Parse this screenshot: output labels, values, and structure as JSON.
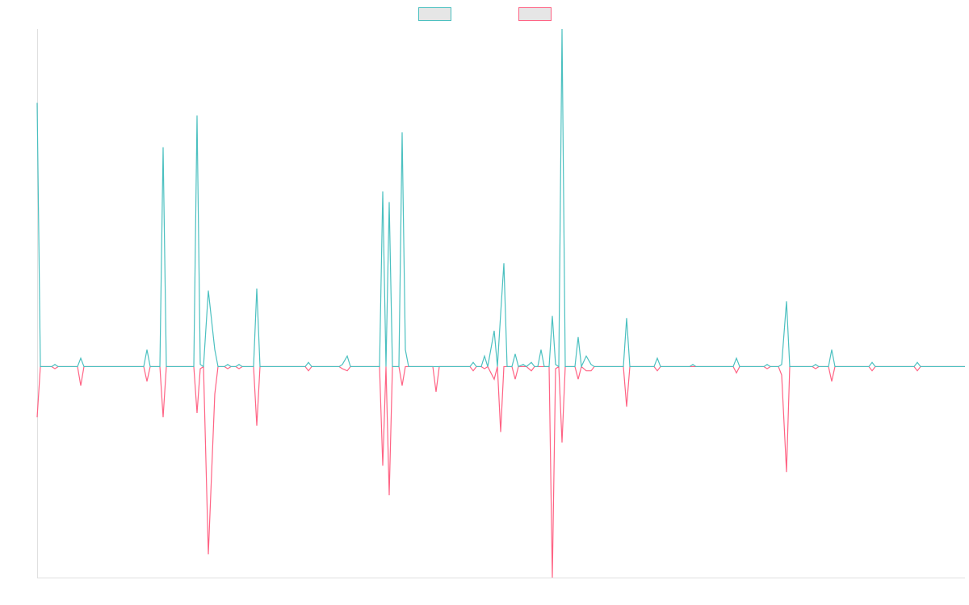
{
  "chart_data": {
    "type": "line",
    "x": [
      0,
      4,
      18,
      22,
      26,
      50,
      54,
      58,
      132,
      136,
      140,
      152,
      156,
      160,
      194,
      198,
      202,
      206,
      212,
      220,
      224,
      232,
      236,
      240,
      246,
      250,
      254,
      268,
      272,
      276,
      332,
      336,
      340,
      374,
      378,
      384,
      388,
      424,
      428,
      432,
      436,
      440,
      448,
      452,
      456,
      460,
      490,
      494,
      498,
      536,
      540,
      544,
      550,
      554,
      558,
      566,
      570,
      574,
      578,
      582,
      588,
      592,
      596,
      602,
      606,
      612,
      616,
      620,
      624,
      628,
      634,
      638,
      642,
      646,
      650,
      654,
      666,
      670,
      674,
      680,
      686,
      690,
      726,
      730,
      734,
      764,
      768,
      772,
      808,
      812,
      816,
      862,
      866,
      870,
      900,
      904,
      908,
      918,
      922,
      928,
      932,
      960,
      964,
      968,
      980,
      984,
      988,
      1030,
      1034,
      1038,
      1086,
      1090,
      1094,
      1149
    ],
    "series": [
      {
        "color": "#4bc0c0",
        "values": [
          1.25,
          0,
          0,
          0.01,
          0,
          0,
          0.04,
          0,
          0,
          0.08,
          0,
          0,
          1.04,
          0,
          0,
          1.19,
          0.01,
          0,
          0.36,
          0.08,
          0,
          0,
          0.01,
          0,
          0,
          0.01,
          0,
          0,
          0.37,
          0,
          0,
          0.02,
          0,
          0,
          0.01,
          0.05,
          0,
          0,
          0.83,
          0,
          0.78,
          0,
          0,
          1.11,
          0.08,
          0,
          0,
          0,
          0,
          0,
          0.02,
          0,
          0,
          0.05,
          0,
          0.17,
          0,
          0.25,
          0.49,
          0,
          0,
          0.06,
          0,
          0.01,
          0,
          0.02,
          0,
          0,
          0.08,
          0,
          0,
          0.24,
          0.01,
          0,
          1.6,
          0,
          0,
          0.14,
          0,
          0.05,
          0.01,
          0,
          0,
          0.23,
          0,
          0,
          0.04,
          0,
          0,
          0.01,
          0,
          0,
          0.04,
          0,
          0,
          0.01,
          0,
          0,
          0.01,
          0.31,
          0,
          0,
          0.01,
          0,
          0,
          0.08,
          0,
          0,
          0.02,
          0,
          0,
          0.02,
          0,
          0
        ]
      },
      {
        "color": "#ff6384",
        "values": [
          -0.24,
          0,
          0,
          -0.01,
          0,
          0,
          -0.09,
          0,
          0,
          -0.07,
          0,
          0,
          -0.24,
          0,
          0,
          -0.22,
          -0.01,
          0,
          -0.89,
          -0.13,
          0,
          0,
          -0.01,
          0,
          0,
          -0.01,
          0,
          0,
          -0.28,
          0,
          0,
          -0.02,
          0,
          0,
          -0.01,
          -0.02,
          0,
          0,
          -0.47,
          0,
          -0.61,
          0,
          0,
          -0.09,
          0,
          0,
          0,
          -0.12,
          0,
          0,
          -0.02,
          0,
          0,
          -0.01,
          0,
          -0.06,
          0,
          -0.31,
          0,
          0,
          0,
          -0.06,
          0,
          0,
          0,
          -0.02,
          0,
          0,
          0,
          0,
          0,
          -1,
          -0.01,
          0,
          -0.36,
          0,
          0,
          -0.06,
          0,
          -0.02,
          -0.02,
          0,
          0,
          -0.19,
          0,
          0,
          -0.02,
          0,
          0,
          0,
          0,
          0,
          -0.03,
          0,
          0,
          -0.01,
          0,
          0,
          -0.04,
          -0.5,
          0,
          0,
          -0.01,
          0,
          0,
          -0.07,
          0,
          0,
          -0.02,
          0,
          0,
          -0.02,
          0,
          0
        ]
      }
    ],
    "xlim": [
      0,
      1149
    ],
    "ylim": [
      -1,
      1.6
    ],
    "legend": "top"
  }
}
